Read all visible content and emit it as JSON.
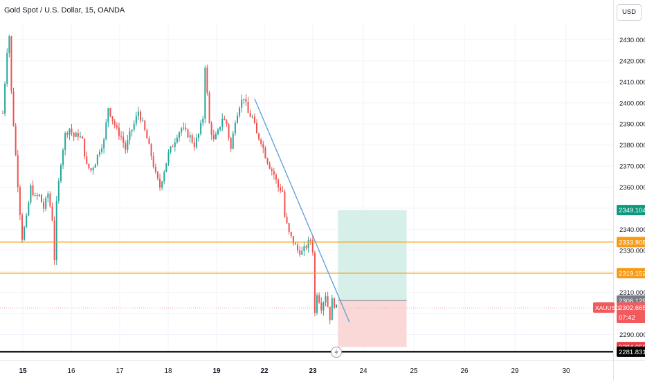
{
  "header": {
    "title": "Gold Spot / U.S. Dollar, 15, OANDA",
    "currency_button": "USD"
  },
  "colors": {
    "up": "#26a69a",
    "down": "#ef5350",
    "trendline": "#5b9bd5",
    "horizontal": "#f7a21b",
    "support": "#000000",
    "target_zone": "#d6efe9",
    "stop_zone": "#fbd8d8",
    "target_label": "#0b9a7e",
    "entry_label": "#787b86",
    "stop_label": "#e9404b",
    "current_label": "#f25a5e",
    "orange_label": "#f79a17"
  },
  "chart_data": {
    "type": "candlestick",
    "symbol": "XAUUSD",
    "timeframe": "15",
    "ylim": [
      2281.831,
      2436
    ],
    "y_ticks": [
      2290,
      2300,
      2310,
      2320,
      2330,
      2340,
      2350,
      2360,
      2370,
      2380,
      2390,
      2400,
      2410,
      2420,
      2430
    ],
    "y_tick_labels": [
      "2290.000",
      "2300.000",
      "2310.000",
      "2320.000",
      "2330.000",
      "2340.000",
      "2350.000",
      "2360.000",
      "2370.000",
      "2380.000",
      "2390.000",
      "2400.000",
      "2410.000",
      "2420.000",
      "2430.000"
    ],
    "x_axis": {
      "labels": [
        "15",
        "16",
        "17",
        "18",
        "19",
        "22",
        "23",
        "24",
        "25",
        "26",
        "29",
        "30"
      ],
      "bold_labels": [
        "15",
        "19",
        "22",
        "23"
      ]
    },
    "price_path": [
      [
        0,
        2395
      ],
      [
        2,
        2425
      ],
      [
        3,
        2432
      ],
      [
        4,
        2405
      ],
      [
        6,
        2375
      ],
      [
        8,
        2348
      ],
      [
        9,
        2336
      ],
      [
        11,
        2345
      ],
      [
        13,
        2360
      ],
      [
        15,
        2355
      ],
      [
        17,
        2356
      ],
      [
        19,
        2350
      ],
      [
        21,
        2357
      ],
      [
        23,
        2345
      ],
      [
        24,
        2326
      ],
      [
        25,
        2352
      ],
      [
        27,
        2372
      ],
      [
        29,
        2385
      ],
      [
        31,
        2388
      ],
      [
        33,
        2384
      ],
      [
        35,
        2385
      ],
      [
        37,
        2382
      ],
      [
        39,
        2370
      ],
      [
        41,
        2368
      ],
      [
        43,
        2372
      ],
      [
        45,
        2378
      ],
      [
        47,
        2382
      ],
      [
        49,
        2398
      ],
      [
        51,
        2392
      ],
      [
        53,
        2387
      ],
      [
        55,
        2384
      ],
      [
        57,
        2378
      ],
      [
        59,
        2385
      ],
      [
        61,
        2390
      ],
      [
        63,
        2396
      ],
      [
        65,
        2390
      ],
      [
        67,
        2383
      ],
      [
        69,
        2375
      ],
      [
        71,
        2366
      ],
      [
        73,
        2360
      ],
      [
        75,
        2368
      ],
      [
        77,
        2376
      ],
      [
        79,
        2380
      ],
      [
        81,
        2385
      ],
      [
        83,
        2388
      ],
      [
        85,
        2386
      ],
      [
        87,
        2384
      ],
      [
        89,
        2380
      ],
      [
        91,
        2385
      ],
      [
        93,
        2393
      ],
      [
        94,
        2418
      ],
      [
        96,
        2390
      ],
      [
        98,
        2382
      ],
      [
        100,
        2386
      ],
      [
        102,
        2393
      ],
      [
        104,
        2390
      ],
      [
        106,
        2378
      ],
      [
        108,
        2392
      ],
      [
        110,
        2399
      ],
      [
        112,
        2403
      ],
      [
        114,
        2395
      ],
      [
        116,
        2393
      ],
      [
        118,
        2385
      ],
      [
        120,
        2382
      ],
      [
        122,
        2375
      ],
      [
        124,
        2370
      ],
      [
        126,
        2366
      ],
      [
        128,
        2360
      ],
      [
        130,
        2358
      ],
      [
        131,
        2346
      ],
      [
        133,
        2338
      ],
      [
        135,
        2334
      ],
      [
        137,
        2330
      ],
      [
        139,
        2329
      ],
      [
        141,
        2332
      ],
      [
        143,
        2335
      ],
      [
        144,
        2330
      ],
      [
        145,
        2300
      ],
      [
        146,
        2310
      ],
      [
        148,
        2303
      ],
      [
        150,
        2309
      ],
      [
        152,
        2298
      ],
      [
        153,
        2306
      ],
      [
        155,
        2302.665
      ]
    ],
    "price_scale_labels": [
      {
        "text": "2349.104",
        "value": 2349.104,
        "role": "target"
      },
      {
        "text": "2333.908",
        "value": 2333.908,
        "role": "level"
      },
      {
        "text": "2319.152",
        "value": 2319.152,
        "role": "level"
      },
      {
        "text": "2306.129",
        "value": 2306.129,
        "role": "entry"
      },
      {
        "text": "2302.665",
        "value": 2302.665,
        "role": "current"
      },
      {
        "text": "2284.058",
        "value": 2284.058,
        "role": "stop"
      },
      {
        "text": "2281.831",
        "value": 2281.831,
        "role": "support"
      }
    ],
    "current_price": {
      "symbol": "XAUUSD",
      "price": "2302.665",
      "countdown": "07:42"
    },
    "horizontal_lines": [
      2333.908,
      2319.152,
      2281.831
    ],
    "trendline": {
      "from": [
        117,
        2402
      ],
      "to": [
        161,
        2296
      ]
    },
    "position": {
      "type": "long",
      "entry": 2306.129,
      "target": 2349.104,
      "stop": 2284.058,
      "x_from": 157,
      "x_to": 187
    }
  }
}
